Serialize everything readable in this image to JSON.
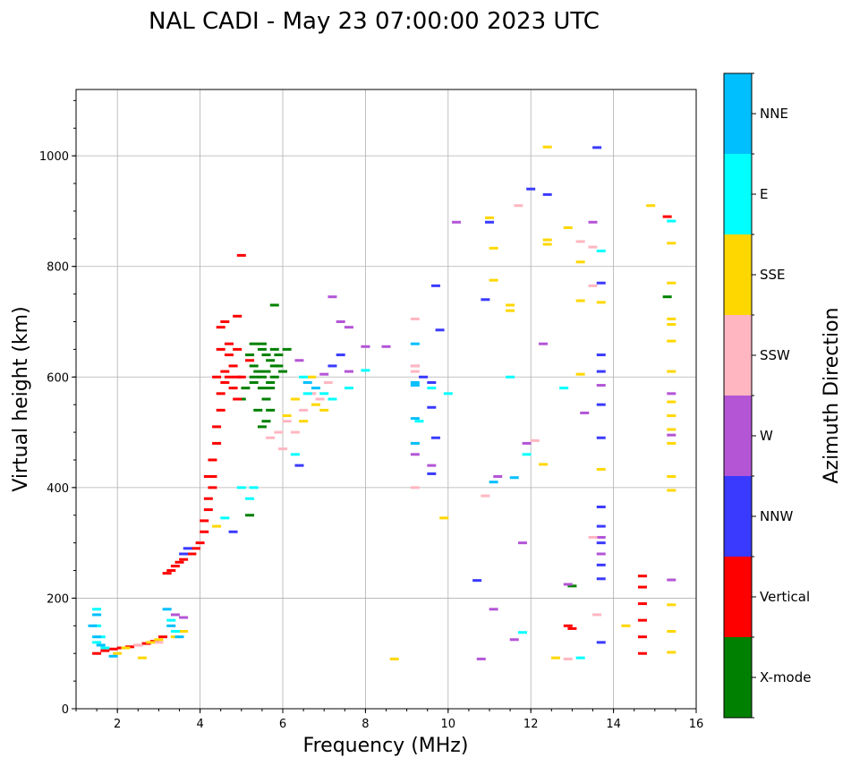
{
  "chart_data": {
    "type": "scatter",
    "title": "NAL CADI - May 23 07:00:00 2023 UTC",
    "xlabel": "Frequency (MHz)",
    "ylabel": "Virtual height (km)",
    "xlim": [
      1,
      16
    ],
    "ylim": [
      0,
      1120
    ],
    "xticks": [
      2,
      4,
      6,
      8,
      10,
      12,
      14,
      16
    ],
    "xtick_labels": [
      "2",
      "4",
      "6",
      "8",
      "10",
      "12",
      "14",
      "16"
    ],
    "yticks": [
      0,
      200,
      400,
      600,
      800,
      1000
    ],
    "ytick_labels": [
      "0",
      "200",
      "400",
      "600",
      "800",
      "1000"
    ],
    "grid": true,
    "colorbar": {
      "label": "Azimuth Direction",
      "categories": [
        "X-mode",
        "Vertical",
        "NNW",
        "W",
        "SSW",
        "SSE",
        "E",
        "NNE"
      ],
      "colors": [
        "#008000",
        "#ff0000",
        "#3a3aff",
        "#b455d6",
        "#ffb6c1",
        "#ffd700",
        "#00ffff",
        "#00bfff"
      ]
    },
    "series": [
      {
        "name": "X-mode",
        "points": [
          [
            5.3,
            620
          ],
          [
            5.4,
            610
          ],
          [
            5.5,
            600
          ],
          [
            5.6,
            640
          ],
          [
            5.7,
            630
          ],
          [
            5.8,
            620
          ],
          [
            5.5,
            580
          ],
          [
            5.6,
            560
          ],
          [
            5.4,
            540
          ],
          [
            5.7,
            590
          ],
          [
            5.8,
            600
          ],
          [
            5.9,
            620
          ],
          [
            6.0,
            610
          ],
          [
            5.3,
            660
          ],
          [
            5.5,
            650
          ],
          [
            5.8,
            650
          ],
          [
            5.6,
            610
          ],
          [
            5.2,
            640
          ],
          [
            5.3,
            600
          ],
          [
            5.5,
            510
          ],
          [
            5.6,
            520
          ],
          [
            5.7,
            540
          ],
          [
            5.9,
            640
          ],
          [
            6.1,
            650
          ],
          [
            5.0,
            560
          ],
          [
            5.1,
            580
          ],
          [
            5.8,
            730
          ],
          [
            5.3,
            590
          ],
          [
            5.2,
            350
          ],
          [
            5.5,
            660
          ],
          [
            5.7,
            580
          ],
          [
            13.0,
            222
          ],
          [
            15.3,
            745
          ]
        ]
      },
      {
        "name": "Vertical",
        "points": [
          [
            1.5,
            100
          ],
          [
            1.7,
            105
          ],
          [
            1.9,
            108
          ],
          [
            2.1,
            110
          ],
          [
            2.3,
            112
          ],
          [
            2.5,
            115
          ],
          [
            2.7,
            118
          ],
          [
            2.9,
            122
          ],
          [
            3.1,
            130
          ],
          [
            3.2,
            245
          ],
          [
            3.3,
            250
          ],
          [
            3.4,
            258
          ],
          [
            3.5,
            265
          ],
          [
            3.6,
            270
          ],
          [
            3.8,
            280
          ],
          [
            3.9,
            290
          ],
          [
            4.0,
            300
          ],
          [
            4.1,
            320
          ],
          [
            4.1,
            340
          ],
          [
            4.2,
            360
          ],
          [
            4.2,
            380
          ],
          [
            4.3,
            400
          ],
          [
            4.3,
            420
          ],
          [
            4.3,
            450
          ],
          [
            4.4,
            480
          ],
          [
            4.4,
            510
          ],
          [
            4.5,
            540
          ],
          [
            4.5,
            570
          ],
          [
            4.6,
            590
          ],
          [
            4.6,
            610
          ],
          [
            4.7,
            640
          ],
          [
            4.7,
            660
          ],
          [
            4.5,
            690
          ],
          [
            4.8,
            620
          ],
          [
            4.9,
            600
          ],
          [
            4.8,
            580
          ],
          [
            5.0,
            600
          ],
          [
            4.7,
            600
          ],
          [
            4.9,
            650
          ],
          [
            5.0,
            820
          ],
          [
            5.2,
            630
          ],
          [
            4.9,
            710
          ],
          [
            4.9,
            560
          ],
          [
            4.6,
            700
          ],
          [
            4.2,
            420
          ],
          [
            4.4,
            600
          ],
          [
            4.5,
            650
          ],
          [
            12.9,
            150
          ],
          [
            13.0,
            145
          ],
          [
            14.7,
            100
          ],
          [
            14.7,
            130
          ],
          [
            14.7,
            160
          ],
          [
            14.7,
            190
          ],
          [
            14.7,
            220
          ],
          [
            14.7,
            240
          ],
          [
            15.3,
            890
          ]
        ]
      },
      {
        "name": "NNW",
        "points": [
          [
            3.6,
            280
          ],
          [
            3.7,
            290
          ],
          [
            4.8,
            320
          ],
          [
            6.4,
            440
          ],
          [
            9.4,
            600
          ],
          [
            9.6,
            590
          ],
          [
            9.6,
            545
          ],
          [
            9.7,
            765
          ],
          [
            9.8,
            685
          ],
          [
            11.0,
            880
          ],
          [
            12.4,
            930
          ],
          [
            13.6,
            1015
          ],
          [
            13.7,
            770
          ],
          [
            13.7,
            640
          ],
          [
            13.7,
            610
          ],
          [
            13.7,
            550
          ],
          [
            13.7,
            490
          ],
          [
            13.7,
            365
          ],
          [
            13.7,
            330
          ],
          [
            13.7,
            300
          ],
          [
            13.7,
            260
          ],
          [
            13.7,
            235
          ],
          [
            13.7,
            120
          ],
          [
            12.0,
            940
          ],
          [
            10.9,
            740
          ],
          [
            9.7,
            490
          ],
          [
            9.6,
            425
          ],
          [
            7.4,
            640
          ],
          [
            7.2,
            620
          ],
          [
            10.7,
            232
          ]
        ]
      },
      {
        "name": "W",
        "points": [
          [
            3.4,
            170
          ],
          [
            3.6,
            165
          ],
          [
            6.4,
            630
          ],
          [
            7.0,
            605
          ],
          [
            7.2,
            745
          ],
          [
            7.4,
            700
          ],
          [
            7.6,
            690
          ],
          [
            7.6,
            610
          ],
          [
            8.0,
            655
          ],
          [
            8.5,
            655
          ],
          [
            9.2,
            620
          ],
          [
            9.2,
            460
          ],
          [
            9.6,
            440
          ],
          [
            10.2,
            880
          ],
          [
            10.8,
            90
          ],
          [
            11.1,
            180
          ],
          [
            11.2,
            420
          ],
          [
            11.6,
            125
          ],
          [
            11.8,
            300
          ],
          [
            11.9,
            480
          ],
          [
            12.3,
            660
          ],
          [
            12.9,
            225
          ],
          [
            13.3,
            535
          ],
          [
            13.5,
            880
          ],
          [
            13.7,
            585
          ],
          [
            13.7,
            310
          ],
          [
            13.7,
            280
          ],
          [
            15.4,
            570
          ],
          [
            15.4,
            495
          ],
          [
            15.4,
            233
          ]
        ]
      },
      {
        "name": "SSW",
        "points": [
          [
            2.5,
            115
          ],
          [
            3.0,
            120
          ],
          [
            5.7,
            490
          ],
          [
            5.9,
            500
          ],
          [
            6.1,
            520
          ],
          [
            6.3,
            500
          ],
          [
            6.5,
            540
          ],
          [
            6.7,
            570
          ],
          [
            6.9,
            560
          ],
          [
            7.1,
            590
          ],
          [
            6.0,
            470
          ],
          [
            9.2,
            620
          ],
          [
            9.2,
            610
          ],
          [
            9.2,
            705
          ],
          [
            9.2,
            400
          ],
          [
            10.9,
            385
          ],
          [
            11.7,
            910
          ],
          [
            12.1,
            485
          ],
          [
            12.9,
            90
          ],
          [
            13.2,
            845
          ],
          [
            13.5,
            765
          ],
          [
            13.5,
            835
          ],
          [
            13.6,
            170
          ],
          [
            13.5,
            310
          ]
        ]
      },
      {
        "name": "SSE",
        "points": [
          [
            2.0,
            100
          ],
          [
            2.2,
            110
          ],
          [
            2.6,
            92
          ],
          [
            2.8,
            120
          ],
          [
            3.0,
            125
          ],
          [
            3.4,
            130
          ],
          [
            3.6,
            140
          ],
          [
            4.4,
            330
          ],
          [
            6.1,
            530
          ],
          [
            6.3,
            560
          ],
          [
            6.5,
            520
          ],
          [
            6.7,
            600
          ],
          [
            6.8,
            550
          ],
          [
            7.0,
            540
          ],
          [
            9.2,
            480
          ],
          [
            9.9,
            345
          ],
          [
            11.0,
            888
          ],
          [
            11.1,
            833
          ],
          [
            11.1,
            775
          ],
          [
            11.5,
            730
          ],
          [
            11.5,
            720
          ],
          [
            12.4,
            1016
          ],
          [
            12.4,
            848
          ],
          [
            12.4,
            840
          ],
          [
            12.9,
            870
          ],
          [
            13.2,
            808
          ],
          [
            13.2,
            738
          ],
          [
            13.2,
            605
          ],
          [
            13.7,
            735
          ],
          [
            13.7,
            433
          ],
          [
            14.3,
            150
          ],
          [
            14.9,
            910
          ],
          [
            15.4,
            842
          ],
          [
            15.4,
            770
          ],
          [
            15.4,
            705
          ],
          [
            15.4,
            695
          ],
          [
            15.4,
            665
          ],
          [
            15.4,
            610
          ],
          [
            15.4,
            555
          ],
          [
            15.4,
            530
          ],
          [
            15.4,
            505
          ],
          [
            15.4,
            480
          ],
          [
            15.4,
            420
          ],
          [
            15.4,
            395
          ],
          [
            15.4,
            188
          ],
          [
            15.4,
            140
          ],
          [
            15.4,
            102
          ],
          [
            12.6,
            92
          ],
          [
            8.7,
            90
          ],
          [
            12.3,
            442
          ]
        ]
      },
      {
        "name": "E",
        "points": [
          [
            1.5,
            180
          ],
          [
            1.5,
            150
          ],
          [
            1.6,
            130
          ],
          [
            1.7,
            110
          ],
          [
            1.5,
            120
          ],
          [
            3.3,
            160
          ],
          [
            3.4,
            140
          ],
          [
            4.6,
            345
          ],
          [
            5.0,
            400
          ],
          [
            5.2,
            380
          ],
          [
            5.3,
            400
          ],
          [
            6.3,
            460
          ],
          [
            6.6,
            570
          ],
          [
            6.5,
            600
          ],
          [
            7.0,
            570
          ],
          [
            7.2,
            560
          ],
          [
            7.6,
            580
          ],
          [
            8.0,
            612
          ],
          [
            9.3,
            520
          ],
          [
            9.6,
            580
          ],
          [
            10.0,
            570
          ],
          [
            11.5,
            600
          ],
          [
            11.9,
            460
          ],
          [
            12.8,
            580
          ],
          [
            13.2,
            92
          ],
          [
            11.8,
            138
          ],
          [
            15.4,
            882
          ],
          [
            13.7,
            828
          ]
        ]
      },
      {
        "name": "NNE",
        "points": [
          [
            1.4,
            150
          ],
          [
            1.5,
            130
          ],
          [
            1.5,
            170
          ],
          [
            1.6,
            115
          ],
          [
            1.9,
            95
          ],
          [
            3.2,
            180
          ],
          [
            3.3,
            150
          ],
          [
            3.5,
            130
          ],
          [
            6.6,
            590
          ],
          [
            6.8,
            580
          ],
          [
            9.2,
            660
          ],
          [
            9.2,
            590
          ],
          [
            9.2,
            585
          ],
          [
            9.2,
            525
          ],
          [
            9.2,
            480
          ],
          [
            11.1,
            410
          ],
          [
            11.6,
            418
          ]
        ]
      }
    ]
  }
}
